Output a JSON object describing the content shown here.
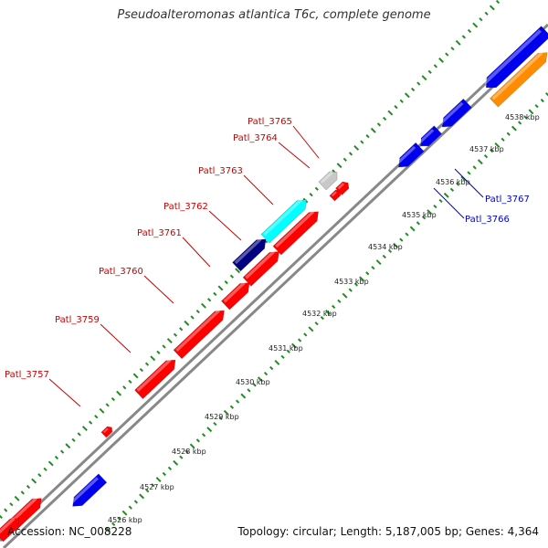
{
  "title": "Pseudoalteromonas atlantica T6c, complete genome",
  "footer": {
    "accession": "Accession: NC_008228",
    "summary": "Topology: circular; Length: 5,187,005 bp; Genes: 4,364"
  },
  "colors": {
    "forward_gene": "#ff0000",
    "forward_gene_alt": "#e00000",
    "reverse_gene": "#0000ee",
    "grey_gene": "#c8c8c8",
    "cyan_gene": "#00ffff",
    "navy_gene": "#000080",
    "orange_gene": "#ff8c00",
    "backbone": "#888888",
    "gc_ticks": "#228b22",
    "forward_label": "#cc0000",
    "reverse_label": "#0000cc"
  },
  "scale_labels": [
    "4526 kbp",
    "4527 kbp",
    "4528 kbp",
    "4529 kbp",
    "4530 kbp",
    "4531 kbp",
    "4532 kbp",
    "4533 kbp",
    "4534 kbp",
    "4535 kbp",
    "4536 kbp",
    "4537 kbp",
    "4538 kbp"
  ],
  "gene_labels": [
    {
      "text": "Patl_3757",
      "strand": "forward"
    },
    {
      "text": "Patl_3759",
      "strand": "forward"
    },
    {
      "text": "Patl_3760",
      "strand": "forward"
    },
    {
      "text": "Patl_3761",
      "strand": "forward"
    },
    {
      "text": "Patl_3762",
      "strand": "forward"
    },
    {
      "text": "Patl_3763",
      "strand": "forward"
    },
    {
      "text": "Patl_3764",
      "strand": "forward"
    },
    {
      "text": "Patl_3765",
      "strand": "forward"
    },
    {
      "text": "Patl_3766",
      "strand": "reverse"
    },
    {
      "text": "Patl_3767",
      "strand": "reverse"
    }
  ]
}
